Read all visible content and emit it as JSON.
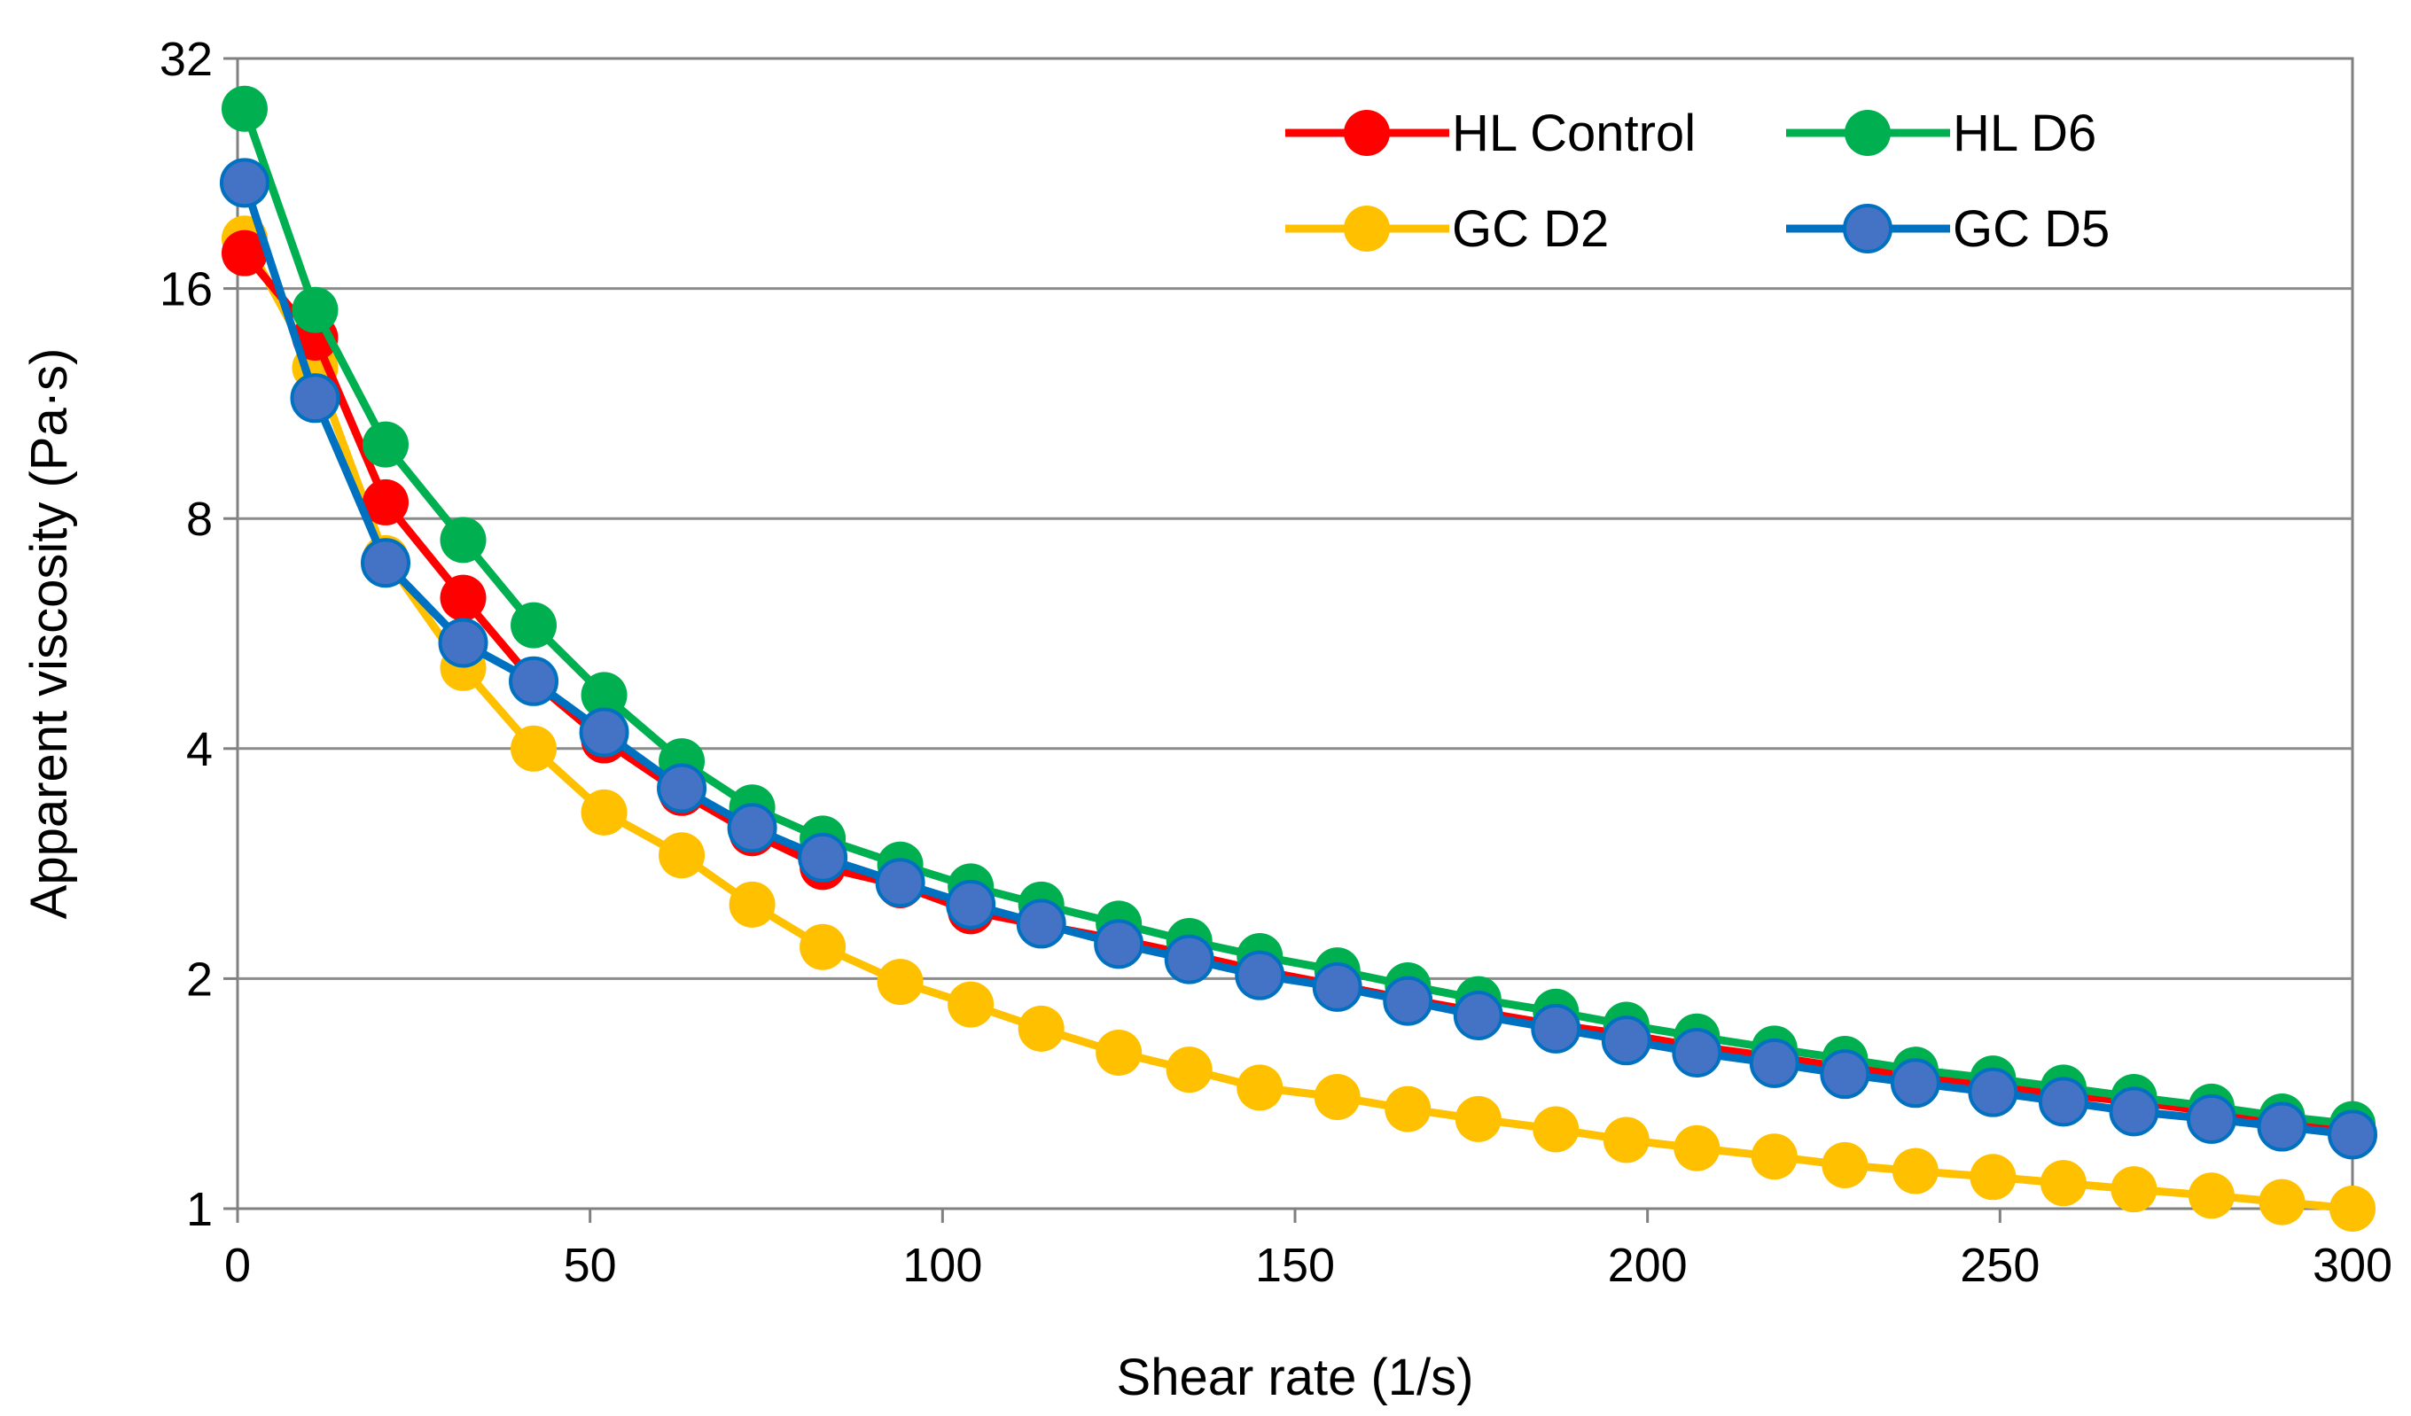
{
  "chart_data": {
    "type": "line",
    "title": "",
    "xlabel": "Shear rate (1/s)",
    "ylabel": "Apparent viscosity (Pa·s)",
    "xlim": [
      0,
      300
    ],
    "ylim": [
      1,
      32
    ],
    "yscale": "log2",
    "xticks": [
      "0",
      "50",
      "100",
      "150",
      "200",
      "250",
      "300"
    ],
    "yticks": [
      "1",
      "2",
      "4",
      "8",
      "16",
      "32"
    ],
    "grid": "horizontal",
    "legend_position": "top-right",
    "x": [
      1,
      11,
      21,
      32,
      42,
      52,
      63,
      73,
      83,
      94,
      104,
      114,
      125,
      135,
      145,
      156,
      166,
      176,
      187,
      197,
      207,
      218,
      228,
      238,
      249,
      259,
      269,
      280,
      290,
      300
    ],
    "series": [
      {
        "name": "HL Control",
        "color": "#ff0000",
        "values": [
          17.8,
          13.8,
          8.4,
          6.3,
          4.9,
          4.1,
          3.5,
          3.1,
          2.8,
          2.65,
          2.45,
          2.35,
          2.25,
          2.15,
          2.05,
          1.96,
          1.88,
          1.81,
          1.74,
          1.69,
          1.63,
          1.58,
          1.53,
          1.49,
          1.45,
          1.41,
          1.38,
          1.34,
          1.31,
          1.28
        ]
      },
      {
        "name": "HL D6",
        "color": "#00b050",
        "values": [
          27.5,
          15.0,
          10.0,
          7.5,
          5.8,
          4.7,
          3.85,
          3.35,
          3.05,
          2.82,
          2.64,
          2.5,
          2.36,
          2.24,
          2.14,
          2.05,
          1.96,
          1.88,
          1.81,
          1.74,
          1.68,
          1.62,
          1.57,
          1.52,
          1.48,
          1.44,
          1.4,
          1.36,
          1.32,
          1.29
        ]
      },
      {
        "name": "GC D2",
        "color": "#ffc000",
        "values": [
          18.6,
          12.6,
          7.1,
          5.1,
          4.0,
          3.3,
          2.9,
          2.5,
          2.2,
          1.98,
          1.85,
          1.72,
          1.6,
          1.52,
          1.44,
          1.4,
          1.35,
          1.31,
          1.27,
          1.23,
          1.2,
          1.17,
          1.14,
          1.12,
          1.1,
          1.08,
          1.06,
          1.04,
          1.02,
          1.0
        ]
      },
      {
        "name": "GC D5",
        "color": "#4472c4",
        "edge": "#0070c0",
        "values": [
          22.0,
          11.5,
          7.0,
          5.5,
          4.9,
          4.2,
          3.55,
          3.15,
          2.88,
          2.67,
          2.5,
          2.36,
          2.22,
          2.12,
          2.02,
          1.95,
          1.87,
          1.79,
          1.72,
          1.66,
          1.6,
          1.55,
          1.5,
          1.46,
          1.42,
          1.38,
          1.34,
          1.31,
          1.28,
          1.25
        ]
      }
    ]
  }
}
